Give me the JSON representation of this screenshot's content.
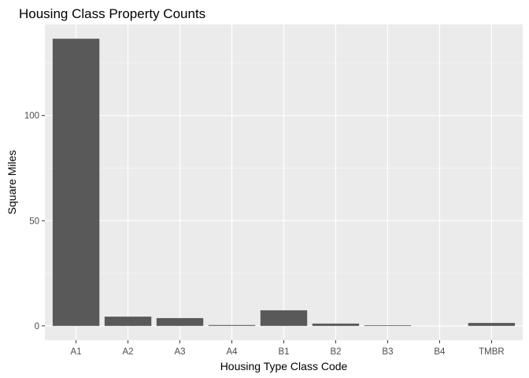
{
  "chart_data": {
    "type": "bar",
    "title": "Housing Class Property Counts",
    "xlabel": "Housing Type Class Code",
    "ylabel": "Square Miles",
    "categories": [
      "A1",
      "A2",
      "A3",
      "A4",
      "B1",
      "B2",
      "B3",
      "B4",
      "TMBR"
    ],
    "values": [
      136.5,
      4.4,
      3.7,
      0.4,
      7.4,
      1.1,
      0.3,
      0.0,
      1.4
    ],
    "ylim": [
      -6.8,
      143.3
    ],
    "yticks": [
      0,
      50,
      100
    ],
    "ytick_labels": [
      "0",
      "50",
      "100"
    ],
    "grid": true,
    "legend": "none",
    "colors": {
      "panel_background": "#ebebeb",
      "grid_major": "#ffffff",
      "bar_fill": "#595959"
    }
  }
}
